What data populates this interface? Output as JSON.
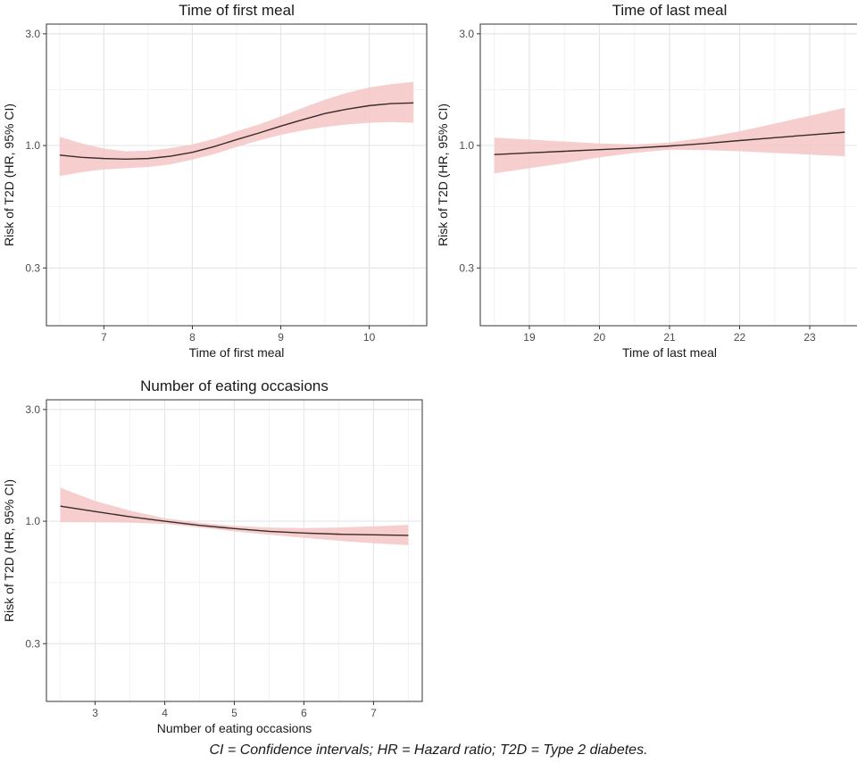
{
  "caption": "CI = Confidence intervals; HR = Hazard ratio; T2D = Type 2 diabetes.",
  "colors": {
    "ribbon": "#f4c6c4",
    "line": "#3a2a2a",
    "grid_major": "#e6e6e6",
    "grid_minor": "#f3f3f3",
    "border": "#333333",
    "text": "#333333"
  },
  "chart_data": [
    {
      "type": "line",
      "title": "Time of first meal",
      "xlabel": "Time of first meal",
      "ylabel": "Risk of T2D (HR, 95% CI)",
      "ylog": true,
      "xlim": [
        6.35,
        10.65
      ],
      "ylim": [
        0.17,
        3.3
      ],
      "xticks": [
        7,
        8,
        9,
        10
      ],
      "xtick_labels": [
        "7",
        "8",
        "9",
        "10"
      ],
      "yticks": [
        0.3,
        1.0,
        3.0
      ],
      "ytick_labels": [
        "0.3",
        "1.0",
        "3.0"
      ],
      "series": [
        {
          "name": "HR",
          "x": [
            6.5,
            6.75,
            7.0,
            7.25,
            7.5,
            7.75,
            8.0,
            8.25,
            8.5,
            8.75,
            9.0,
            9.25,
            9.5,
            9.75,
            10.0,
            10.25,
            10.5
          ],
          "y": [
            0.91,
            0.89,
            0.88,
            0.875,
            0.88,
            0.9,
            0.935,
            0.99,
            1.06,
            1.13,
            1.21,
            1.29,
            1.37,
            1.43,
            1.48,
            1.51,
            1.52
          ],
          "lower": [
            0.74,
            0.77,
            0.79,
            0.8,
            0.81,
            0.83,
            0.87,
            0.92,
            0.985,
            1.05,
            1.11,
            1.16,
            1.2,
            1.23,
            1.25,
            1.26,
            1.25
          ],
          "upper": [
            1.09,
            1.02,
            0.97,
            0.945,
            0.95,
            0.975,
            1.01,
            1.07,
            1.15,
            1.23,
            1.33,
            1.45,
            1.57,
            1.68,
            1.77,
            1.83,
            1.87
          ]
        }
      ]
    },
    {
      "type": "line",
      "title": "Time of last meal",
      "xlabel": "Time of last meal",
      "ylabel": "Risk of T2D (HR, 95% CI)",
      "ylog": true,
      "xlim": [
        18.3,
        23.7
      ],
      "ylim": [
        0.17,
        3.3
      ],
      "xticks": [
        19,
        20,
        21,
        22,
        23
      ],
      "xtick_labels": [
        "19",
        "20",
        "21",
        "22",
        "23"
      ],
      "yticks": [
        0.3,
        1.0,
        3.0
      ],
      "ytick_labels": [
        "0.3",
        "1.0",
        "3.0"
      ],
      "series": [
        {
          "name": "HR",
          "x": [
            18.5,
            19.0,
            19.5,
            20.0,
            20.5,
            21.0,
            21.5,
            22.0,
            22.5,
            23.0,
            23.5
          ],
          "y": [
            0.915,
            0.93,
            0.945,
            0.96,
            0.975,
            0.995,
            1.02,
            1.05,
            1.08,
            1.11,
            1.14
          ],
          "lower": [
            0.76,
            0.8,
            0.84,
            0.89,
            0.93,
            0.96,
            0.955,
            0.945,
            0.93,
            0.915,
            0.9
          ],
          "upper": [
            1.08,
            1.06,
            1.04,
            1.02,
            1.01,
            1.03,
            1.08,
            1.15,
            1.24,
            1.34,
            1.45
          ]
        }
      ]
    },
    {
      "type": "line",
      "title": "Number of eating occasions",
      "xlabel": "Number of eating occasions",
      "ylabel": "Risk of T2D (HR, 95% CI)",
      "ylog": true,
      "xlim": [
        2.3,
        7.7
      ],
      "ylim": [
        0.17,
        3.3
      ],
      "xticks": [
        3,
        4,
        5,
        6,
        7
      ],
      "xtick_labels": [
        "3",
        "4",
        "5",
        "6",
        "7"
      ],
      "yticks": [
        0.3,
        1.0,
        3.0
      ],
      "ytick_labels": [
        "0.3",
        "1.0",
        "3.0"
      ],
      "series": [
        {
          "name": "HR",
          "x": [
            2.5,
            3.0,
            3.5,
            4.0,
            4.5,
            5.0,
            5.5,
            6.0,
            6.5,
            7.0,
            7.5
          ],
          "y": [
            1.16,
            1.1,
            1.045,
            1.0,
            0.96,
            0.93,
            0.905,
            0.89,
            0.88,
            0.875,
            0.87
          ],
          "lower": [
            0.99,
            0.99,
            0.985,
            0.975,
            0.94,
            0.905,
            0.875,
            0.85,
            0.825,
            0.805,
            0.79
          ],
          "upper": [
            1.39,
            1.22,
            1.11,
            1.03,
            0.985,
            0.955,
            0.94,
            0.935,
            0.94,
            0.95,
            0.965
          ]
        }
      ]
    }
  ]
}
